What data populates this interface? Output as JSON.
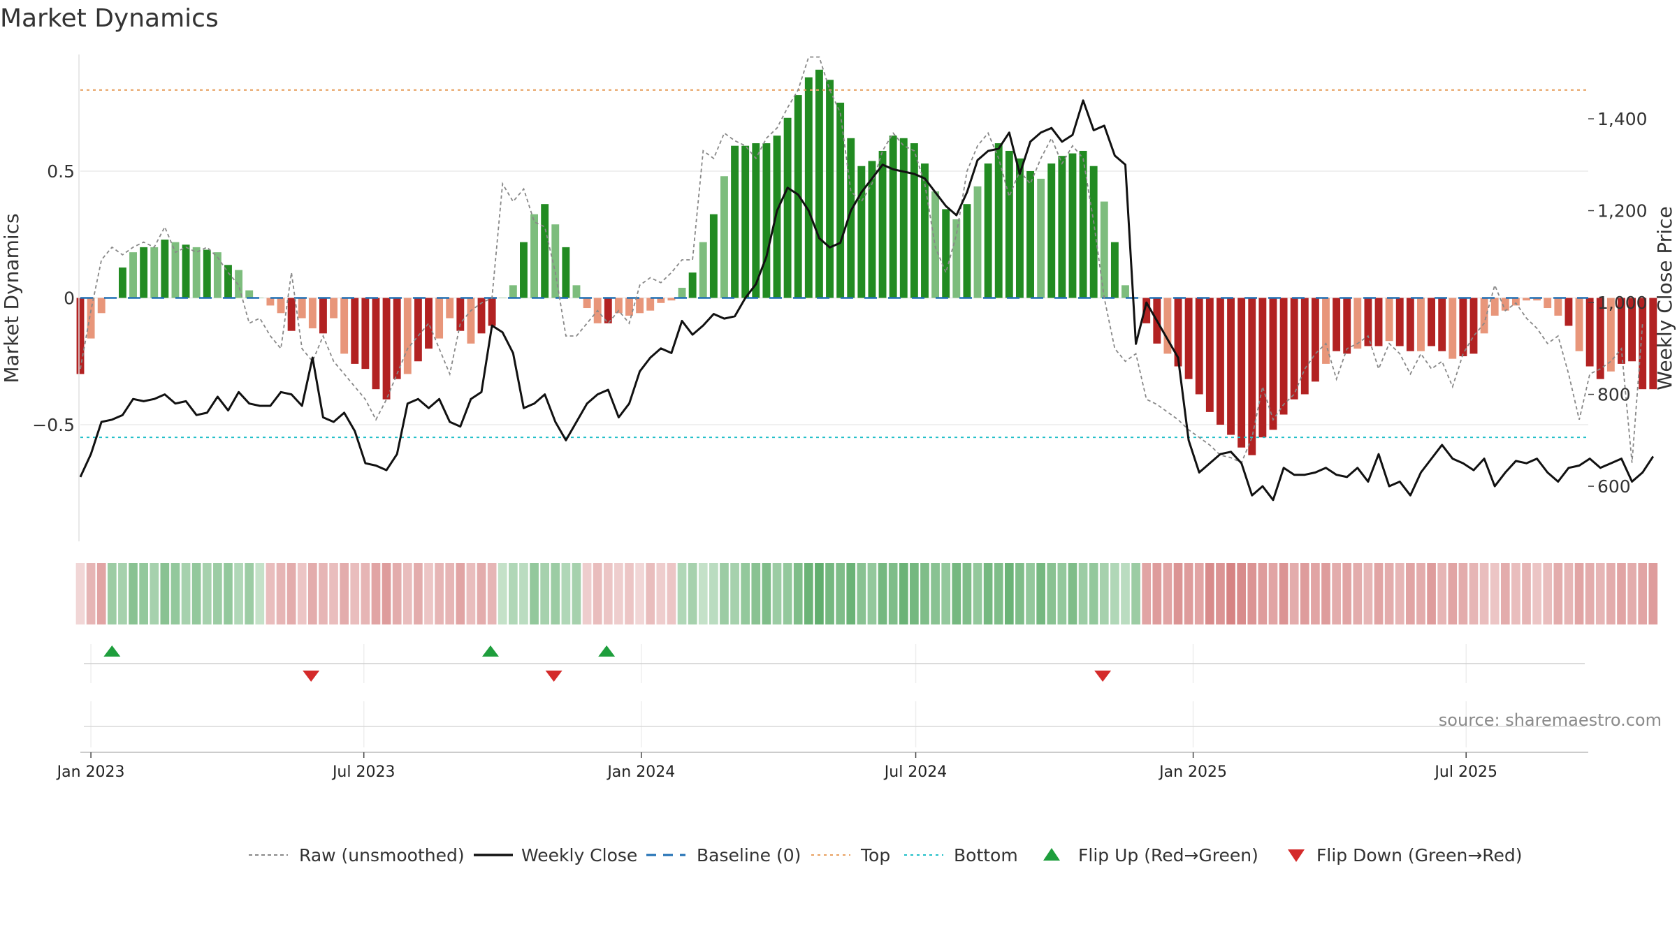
{
  "chart_data": {
    "type": "bar",
    "title": "Market Dynamics",
    "ylabel_left": "Market Dynamics",
    "ylabel_right": "Weekly Close Price",
    "y_left_ticks": [
      {
        "value": 0.5,
        "label": "0.5"
      },
      {
        "value": 0,
        "label": "0"
      },
      {
        "value": -0.5,
        "label": "−0.5"
      }
    ],
    "y_right_ticks": [
      {
        "value": 1400,
        "label": "1,400"
      },
      {
        "value": 1200,
        "label": "1,200"
      },
      {
        "value": 1000,
        "label": "1,000"
      },
      {
        "value": 800,
        "label": "800"
      },
      {
        "value": 600,
        "label": "600"
      }
    ],
    "x_ticks": [
      "Jan 2023",
      "Jul 2023",
      "Jan 2024",
      "Jul 2024",
      "Jan 2025",
      "Jul 2025"
    ],
    "x_tick_dates": [
      "2023-01-01",
      "2023-07-01",
      "2024-01-01",
      "2024-07-01",
      "2025-01-01",
      "2025-07-01"
    ],
    "x_range": [
      "2022-12-25",
      "2025-09-20"
    ],
    "first_week": "2022-12-25",
    "y_left_range": [
      -0.96,
      0.96
    ],
    "y_right_range": [
      480,
      1540
    ],
    "top_level": 0.82,
    "bottom_level": -0.55,
    "bar_values": [
      -0.3,
      -0.16,
      -0.06,
      0.0,
      0.12,
      0.18,
      0.2,
      0.2,
      0.23,
      0.22,
      0.21,
      0.2,
      0.19,
      0.18,
      0.13,
      0.11,
      0.03,
      0.0,
      -0.03,
      -0.06,
      -0.13,
      -0.08,
      -0.12,
      -0.14,
      -0.08,
      -0.22,
      -0.26,
      -0.28,
      -0.36,
      -0.4,
      -0.32,
      -0.3,
      -0.25,
      -0.2,
      -0.16,
      -0.08,
      -0.13,
      -0.18,
      -0.14,
      -0.11,
      0.0,
      0.05,
      0.22,
      0.33,
      0.37,
      0.29,
      0.2,
      0.05,
      -0.04,
      -0.1,
      -0.1,
      -0.06,
      -0.07,
      -0.06,
      -0.05,
      -0.02,
      -0.01,
      0.04,
      0.1,
      0.22,
      0.33,
      0.48,
      0.6,
      0.6,
      0.61,
      0.61,
      0.64,
      0.71,
      0.8,
      0.87,
      0.9,
      0.86,
      0.77,
      0.63,
      0.52,
      0.54,
      0.58,
      0.64,
      0.63,
      0.61,
      0.53,
      0.42,
      0.35,
      0.31,
      0.37,
      0.44,
      0.53,
      0.61,
      0.58,
      0.55,
      0.5,
      0.47,
      0.53,
      0.56,
      0.57,
      0.58,
      0.52,
      0.38,
      0.22,
      0.05,
      0.0,
      -0.1,
      -0.18,
      -0.22,
      -0.27,
      -0.32,
      -0.38,
      -0.45,
      -0.5,
      -0.54,
      -0.59,
      -0.62,
      -0.55,
      -0.52,
      -0.46,
      -0.4,
      -0.38,
      -0.33,
      -0.26,
      -0.21,
      -0.22,
      -0.2,
      -0.19,
      -0.19,
      -0.17,
      -0.19,
      -0.21,
      -0.21,
      -0.19,
      -0.21,
      -0.24,
      -0.23,
      -0.22,
      -0.14,
      -0.07,
      -0.05,
      -0.03,
      -0.01,
      -0.01,
      -0.04,
      -0.07,
      -0.11,
      -0.21,
      -0.27,
      -0.32,
      -0.29,
      -0.26,
      -0.25,
      -0.36,
      -0.36
    ],
    "raw_values": [
      -0.28,
      -0.05,
      0.15,
      0.2,
      0.17,
      0.2,
      0.22,
      0.2,
      0.28,
      0.18,
      0.2,
      0.18,
      0.2,
      0.16,
      0.1,
      0.05,
      -0.1,
      -0.08,
      -0.15,
      -0.2,
      0.1,
      -0.2,
      -0.25,
      -0.15,
      -0.25,
      -0.3,
      -0.35,
      -0.4,
      -0.48,
      -0.4,
      -0.3,
      -0.2,
      -0.15,
      -0.1,
      -0.2,
      -0.3,
      -0.1,
      -0.05,
      -0.02,
      0.0,
      0.45,
      0.38,
      0.43,
      0.3,
      0.28,
      0.1,
      -0.15,
      -0.15,
      -0.1,
      -0.05,
      -0.1,
      -0.05,
      -0.1,
      0.05,
      0.08,
      0.06,
      0.1,
      0.15,
      0.15,
      0.58,
      0.55,
      0.65,
      0.62,
      0.6,
      0.55,
      0.63,
      0.67,
      0.75,
      0.82,
      0.95,
      0.95,
      0.82,
      0.73,
      0.42,
      0.38,
      0.45,
      0.58,
      0.65,
      0.6,
      0.58,
      0.45,
      0.2,
      0.1,
      0.25,
      0.5,
      0.6,
      0.65,
      0.55,
      0.4,
      0.5,
      0.45,
      0.55,
      0.63,
      0.53,
      0.6,
      0.55,
      0.3,
      0.0,
      -0.2,
      -0.25,
      -0.22,
      -0.4,
      -0.42,
      -0.45,
      -0.48,
      -0.52,
      -0.55,
      -0.58,
      -0.62,
      -0.63,
      -0.65,
      -0.55,
      -0.35,
      -0.48,
      -0.42,
      -0.38,
      -0.28,
      -0.22,
      -0.18,
      -0.32,
      -0.2,
      -0.18,
      -0.15,
      -0.28,
      -0.18,
      -0.22,
      -0.3,
      -0.22,
      -0.28,
      -0.25,
      -0.35,
      -0.22,
      -0.15,
      -0.1,
      0.05,
      -0.05,
      -0.02,
      -0.08,
      -0.12,
      -0.18,
      -0.15,
      -0.3,
      -0.48,
      -0.3,
      -0.28,
      -0.25,
      -0.2,
      -0.65,
      -0.1
    ],
    "close_values": [
      620,
      670,
      740,
      745,
      755,
      790,
      785,
      790,
      800,
      780,
      785,
      755,
      760,
      795,
      765,
      805,
      780,
      775,
      775,
      805,
      800,
      775,
      880,
      750,
      740,
      760,
      720,
      650,
      645,
      635,
      670,
      780,
      790,
      770,
      790,
      740,
      730,
      790,
      805,
      950,
      935,
      890,
      770,
      780,
      800,
      740,
      700,
      740,
      780,
      800,
      810,
      750,
      780,
      850,
      880,
      900,
      890,
      960,
      930,
      950,
      975,
      965,
      970,
      1010,
      1040,
      1100,
      1200,
      1250,
      1235,
      1200,
      1140,
      1120,
      1130,
      1200,
      1240,
      1270,
      1300,
      1290,
      1285,
      1280,
      1270,
      1240,
      1210,
      1190,
      1240,
      1310,
      1330,
      1335,
      1370,
      1280,
      1350,
      1370,
      1380,
      1350,
      1365,
      1440,
      1375,
      1385,
      1320,
      1300,
      910,
      1000,
      960,
      920,
      880,
      700,
      630,
      650,
      670,
      675,
      650,
      580,
      600,
      570,
      640,
      625,
      625,
      630,
      640,
      625,
      620,
      640,
      610,
      670,
      600,
      610,
      580,
      630,
      660,
      690,
      660,
      650,
      635,
      660,
      600,
      630,
      655,
      650,
      660,
      630,
      610,
      640,
      645,
      660,
      640,
      650,
      660,
      610,
      630,
      665
    ],
    "strength_alpha": [
      0.25,
      0.45,
      0.55,
      0.5,
      0.45,
      0.6,
      0.55,
      0.45,
      0.6,
      0.55,
      0.45,
      0.55,
      0.45,
      0.5,
      0.55,
      0.4,
      0.5,
      0.3,
      0.4,
      0.45,
      0.5,
      0.35,
      0.5,
      0.45,
      0.4,
      0.5,
      0.4,
      0.45,
      0.55,
      0.6,
      0.5,
      0.4,
      0.5,
      0.35,
      0.45,
      0.45,
      0.55,
      0.4,
      0.5,
      0.45,
      0.3,
      0.4,
      0.35,
      0.55,
      0.45,
      0.5,
      0.4,
      0.45,
      0.3,
      0.4,
      0.35,
      0.3,
      0.35,
      0.25,
      0.4,
      0.3,
      0.35,
      0.4,
      0.45,
      0.3,
      0.35,
      0.5,
      0.45,
      0.55,
      0.6,
      0.65,
      0.5,
      0.55,
      0.65,
      0.75,
      0.8,
      0.7,
      0.65,
      0.75,
      0.6,
      0.55,
      0.7,
      0.65,
      0.75,
      0.7,
      0.65,
      0.6,
      0.55,
      0.7,
      0.65,
      0.55,
      0.7,
      0.65,
      0.75,
      0.65,
      0.55,
      0.7,
      0.6,
      0.55,
      0.65,
      0.5,
      0.55,
      0.45,
      0.4,
      0.35,
      0.5,
      0.55,
      0.6,
      0.55,
      0.65,
      0.6,
      0.55,
      0.7,
      0.65,
      0.75,
      0.7,
      0.65,
      0.6,
      0.55,
      0.65,
      0.5,
      0.6,
      0.55,
      0.6,
      0.5,
      0.55,
      0.5,
      0.45,
      0.55,
      0.5,
      0.45,
      0.55,
      0.5,
      0.6,
      0.45,
      0.55,
      0.5,
      0.45,
      0.4,
      0.35,
      0.5,
      0.4,
      0.45,
      0.35,
      0.4,
      0.5,
      0.45,
      0.55,
      0.5,
      0.45,
      0.5,
      0.55,
      0.5,
      0.55,
      0.6
    ],
    "flip_up_dates": [
      "2023-01-15",
      "2023-09-23",
      "2023-12-09"
    ],
    "flip_down_dates": [
      "2023-05-27",
      "2023-11-04",
      "2024-11-02"
    ],
    "legend": [
      {
        "label": "Raw (unsmoothed)",
        "kind": "dashed-line",
        "color": "#888888"
      },
      {
        "label": "Weekly Close",
        "kind": "line",
        "color": "#111111"
      },
      {
        "label": "Baseline (0)",
        "kind": "dashed-line",
        "color": "#1f6fb4"
      },
      {
        "label": "Top",
        "kind": "dotted-line",
        "color": "#e8a060"
      },
      {
        "label": "Bottom",
        "kind": "dotted-line",
        "color": "#20bfc8"
      },
      {
        "label": "Flip Up (Red→Green)",
        "kind": "triangle-up",
        "color": "#1e9e3c"
      },
      {
        "label": "Flip Down (Green→Red)",
        "kind": "triangle-down",
        "color": "#d42a2a"
      }
    ],
    "legend_position": "bottom",
    "grid": true,
    "source": "source: sharemaestro.com",
    "colors": {
      "green_dark": "#228b22",
      "green_light": "#7dbd7d",
      "red_dark": "#b22222",
      "red_light": "#e8967a",
      "strip_green": "#3a9a4a",
      "strip_red": "#c85a5a",
      "close_line": "#111111",
      "raw_line": "#888888",
      "baseline": "#1f6fb4",
      "top": "#e8a060",
      "bottom": "#20bfc8",
      "flip_up": "#1e9e3c",
      "flip_down": "#d42a2a"
    }
  }
}
